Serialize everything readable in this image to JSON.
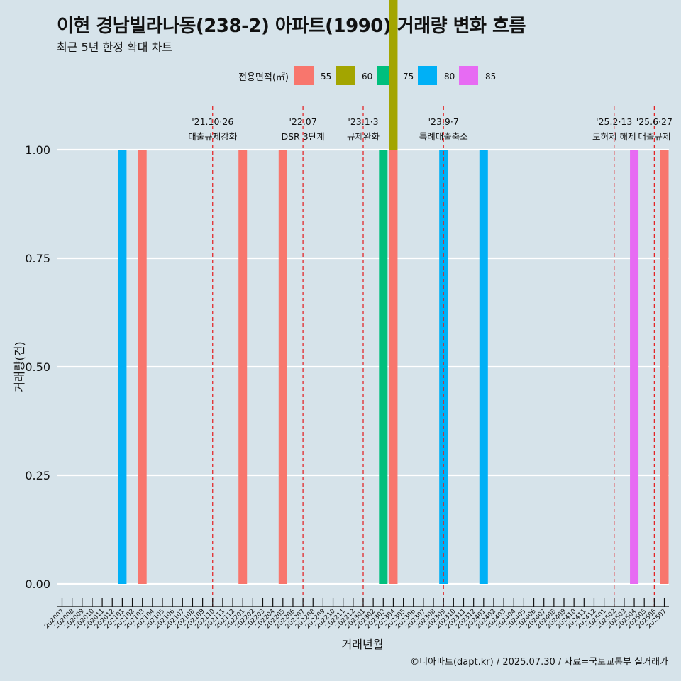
{
  "title": "이현 경남빌라나동(238-2) 아파트(1990) 거래량 변화 흐름",
  "subtitle": "최근 5년 한정 확대 차트",
  "caption": "©디아파트(dapt.kr) / 2025.07.30 / 자료=국토교통부 실거래가",
  "colors": {
    "background": "#d6e3ea",
    "grid": "#ffffff",
    "event_line": "#e41a1c",
    "55": "#f8766d",
    "60": "#a3a500",
    "75": "#00bf7d",
    "80": "#00b0f6",
    "85": "#e76bf3"
  },
  "chart_data": {
    "type": "bar",
    "title": "이현 경남빌라나동(238-2) 아파트(1990) 거래량 변화 흐름",
    "subtitle": "최근 5년 한정 확대 차트",
    "xlabel": "거래년월",
    "ylabel": "거래량(건)",
    "ylim": [
      0,
      1
    ],
    "yticks": [
      0.0,
      0.25,
      0.5,
      0.75,
      1.0
    ],
    "ytick_labels": [
      "0.00",
      "0.25",
      "0.50",
      "0.75",
      "1.00"
    ],
    "grid": true,
    "legend_title": "전용면적(㎡)",
    "legend_position": "top",
    "legend": [
      "55",
      "60",
      "75",
      "80",
      "85"
    ],
    "categories": [
      "202007",
      "202008",
      "202009",
      "202010",
      "202011",
      "202012",
      "202101",
      "202102",
      "202103",
      "202104",
      "202105",
      "202106",
      "202107",
      "202108",
      "202109",
      "202110",
      "202111",
      "202112",
      "202201",
      "202202",
      "202203",
      "202204",
      "202205",
      "202206",
      "202207",
      "202208",
      "202209",
      "202210",
      "202211",
      "202212",
      "202301",
      "202302",
      "202303",
      "202304",
      "202305",
      "202306",
      "202307",
      "202308",
      "202309",
      "202310",
      "202311",
      "202312",
      "202401",
      "202402",
      "202403",
      "202404",
      "202405",
      "202406",
      "202407",
      "202408",
      "202409",
      "202410",
      "202411",
      "202412",
      "202501",
      "202502",
      "202503",
      "202504",
      "202505",
      "202506",
      "202507"
    ],
    "bars": [
      {
        "month": "202101",
        "area": "80",
        "value": 1
      },
      {
        "month": "202103",
        "area": "55",
        "value": 1
      },
      {
        "month": "202201",
        "area": "55",
        "value": 1
      },
      {
        "month": "202205",
        "area": "55",
        "value": 1
      },
      {
        "month": "202303",
        "area": "75",
        "value": 1
      },
      {
        "month": "202304",
        "area": "55",
        "value": 1
      },
      {
        "month": "202304",
        "area": "60",
        "value": 1
      },
      {
        "month": "202309",
        "area": "80",
        "value": 1
      },
      {
        "month": "202401",
        "area": "80",
        "value": 1
      },
      {
        "month": "202504",
        "area": "85",
        "value": 1
      },
      {
        "month": "202507",
        "area": "55",
        "value": 1
      }
    ],
    "events": [
      {
        "month": "202110",
        "date": "'21.10·26",
        "label": "대출규제강화"
      },
      {
        "month": "202207",
        "date": "'22.07",
        "label": "DSR 3단계"
      },
      {
        "month": "202301",
        "date": "'23.1·3",
        "label": "규제완화"
      },
      {
        "month": "202309",
        "date": "'23.9·7",
        "label": "특례대출축소"
      },
      {
        "month": "202502",
        "date": "'25.2·13",
        "label": "토허제 해제"
      },
      {
        "month": "202506",
        "date": "'25.6·27",
        "label": "대출규제"
      }
    ]
  }
}
